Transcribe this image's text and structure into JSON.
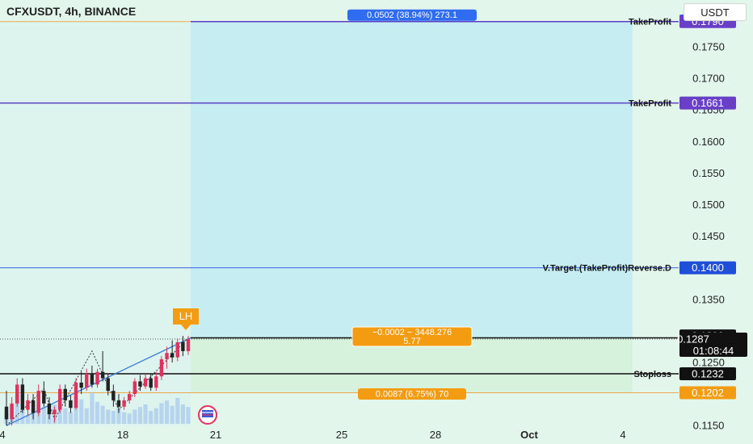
{
  "header": {
    "title": "CFXUSDT, 4h, BINANCE",
    "unit": "USDT"
  },
  "chart_data": {
    "type": "candlestick",
    "title": "CFXUSDT, 4h, BINANCE",
    "ylim": [
      0.114,
      0.1805
    ],
    "y_ticks": [
      "0.1750",
      "0.1700",
      "0.1650",
      "0.1600",
      "0.1550",
      "0.1500",
      "0.1450",
      "0.1350",
      "0.1250",
      "0.1150"
    ],
    "x_ticks": [
      "4",
      "18",
      "21",
      "25",
      "28",
      "Oct",
      "4"
    ],
    "levels": [
      {
        "label": "TakeProfit",
        "price": "0.1790",
        "color": "#5b3fc4"
      },
      {
        "label": "TakeProfit",
        "price": "0.1661",
        "color": "#5b3fc4"
      },
      {
        "label": "V.Target.(TakeProfit)Reverse.D",
        "price": "0.1400",
        "color": "#1f4fd6"
      },
      {
        "label": "Stoploss",
        "price": "0.1232",
        "color": "#000000"
      }
    ],
    "price_tags": {
      "top": "0.1791",
      "p1290": "0.1290",
      "p1289": "0.1289",
      "current": "0.1287",
      "countdown": "01:08:44",
      "p1202": "0.1202"
    },
    "position_boxes": {
      "target": "0.0502 (38.94%) 273.1",
      "entry_line1": "−0.0002 − 3448.276",
      "entry_line2": "5.77",
      "stop": "0.0087 (6.75%) 70"
    },
    "annotation": "LH",
    "candles": [
      {
        "o": 0.118,
        "h": 0.1205,
        "l": 0.115,
        "c": 0.116
      },
      {
        "o": 0.116,
        "h": 0.1195,
        "l": 0.115,
        "c": 0.1185
      },
      {
        "o": 0.1185,
        "h": 0.1225,
        "l": 0.118,
        "c": 0.1215
      },
      {
        "o": 0.1215,
        "h": 0.1225,
        "l": 0.117,
        "c": 0.1175
      },
      {
        "o": 0.1175,
        "h": 0.12,
        "l": 0.1165,
        "c": 0.119
      },
      {
        "o": 0.119,
        "h": 0.12,
        "l": 0.116,
        "c": 0.117
      },
      {
        "o": 0.117,
        "h": 0.1215,
        "l": 0.1165,
        "c": 0.1205
      },
      {
        "o": 0.1205,
        "h": 0.122,
        "l": 0.118,
        "c": 0.1185
      },
      {
        "o": 0.1185,
        "h": 0.1195,
        "l": 0.116,
        "c": 0.1168
      },
      {
        "o": 0.1168,
        "h": 0.118,
        "l": 0.1155,
        "c": 0.1175
      },
      {
        "o": 0.1175,
        "h": 0.1215,
        "l": 0.117,
        "c": 0.1208
      },
      {
        "o": 0.1208,
        "h": 0.1215,
        "l": 0.118,
        "c": 0.119
      },
      {
        "o": 0.119,
        "h": 0.1198,
        "l": 0.117,
        "c": 0.1178
      },
      {
        "o": 0.1178,
        "h": 0.1225,
        "l": 0.1175,
        "c": 0.1218
      },
      {
        "o": 0.1218,
        "h": 0.1235,
        "l": 0.12,
        "c": 0.121
      },
      {
        "o": 0.121,
        "h": 0.124,
        "l": 0.1205,
        "c": 0.1232
      },
      {
        "o": 0.1232,
        "h": 0.1245,
        "l": 0.121,
        "c": 0.1215
      },
      {
        "o": 0.1215,
        "h": 0.124,
        "l": 0.121,
        "c": 0.1235
      },
      {
        "o": 0.1235,
        "h": 0.1268,
        "l": 0.122,
        "c": 0.1225
      },
      {
        "o": 0.1225,
        "h": 0.1232,
        "l": 0.1198,
        "c": 0.1205
      },
      {
        "o": 0.1205,
        "h": 0.1215,
        "l": 0.118,
        "c": 0.119
      },
      {
        "o": 0.119,
        "h": 0.12,
        "l": 0.117,
        "c": 0.118
      },
      {
        "o": 0.118,
        "h": 0.1195,
        "l": 0.1175,
        "c": 0.119
      },
      {
        "o": 0.119,
        "h": 0.1205,
        "l": 0.1185,
        "c": 0.12
      },
      {
        "o": 0.12,
        "h": 0.1225,
        "l": 0.1195,
        "c": 0.122
      },
      {
        "o": 0.122,
        "h": 0.123,
        "l": 0.1205,
        "c": 0.1212
      },
      {
        "o": 0.1212,
        "h": 0.1232,
        "l": 0.1208,
        "c": 0.1225
      },
      {
        "o": 0.1225,
        "h": 0.1232,
        "l": 0.1205,
        "c": 0.121
      },
      {
        "o": 0.121,
        "h": 0.1235,
        "l": 0.1205,
        "c": 0.1228
      },
      {
        "o": 0.1228,
        "h": 0.126,
        "l": 0.1222,
        "c": 0.1255
      },
      {
        "o": 0.1255,
        "h": 0.1275,
        "l": 0.124,
        "c": 0.1265
      },
      {
        "o": 0.1265,
        "h": 0.1285,
        "l": 0.125,
        "c": 0.1258
      },
      {
        "o": 0.1258,
        "h": 0.1288,
        "l": 0.1252,
        "c": 0.1282
      },
      {
        "o": 0.1282,
        "h": 0.1292,
        "l": 0.126,
        "c": 0.1268
      },
      {
        "o": 0.1268,
        "h": 0.1292,
        "l": 0.1262,
        "c": 0.1287
      }
    ],
    "volumes": [
      9,
      14,
      22,
      11,
      7,
      12,
      16,
      13,
      10,
      15,
      18,
      12,
      9,
      22,
      19,
      12,
      24,
      17,
      14,
      11,
      10,
      12,
      9,
      8,
      11,
      13,
      15,
      10,
      12,
      16,
      18,
      14,
      20,
      15,
      13
    ]
  }
}
